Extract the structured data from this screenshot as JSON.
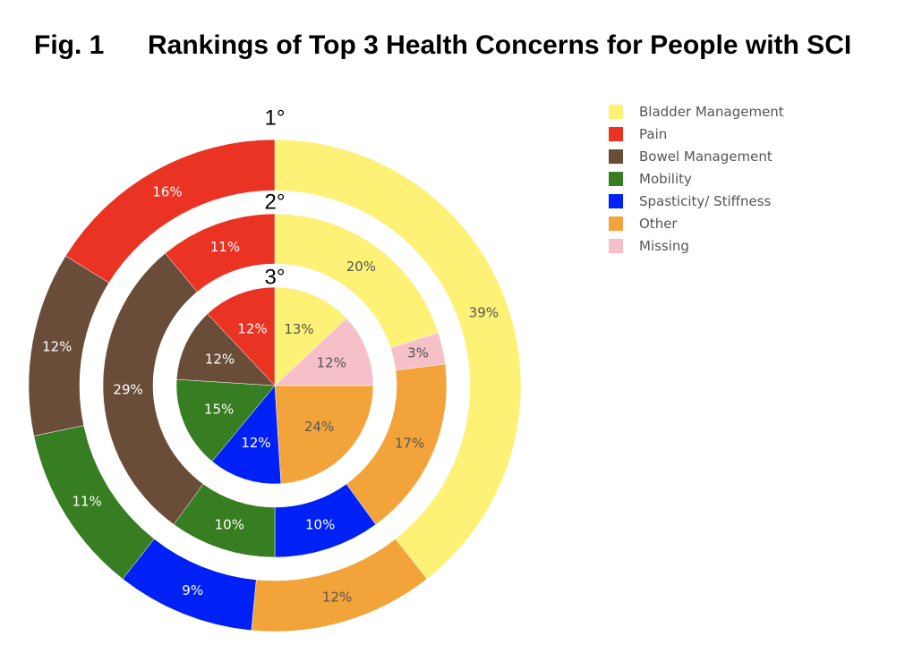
{
  "figure": {
    "label": "Fig. 1",
    "title": "Rankings of Top 3 Health Concerns for People with SCI"
  },
  "chart_data": {
    "type": "pie",
    "subtype": "nested-donut",
    "categories": [
      "Bladder Management",
      "Pain",
      "Bowel Management",
      "Mobility",
      "Spasticity/ Stiffness",
      "Other",
      "Missing"
    ],
    "colors": {
      "Bladder Management": "#fdf176",
      "Pain": "#ea3323",
      "Bowel Management": "#6a4d39",
      "Mobility": "#377d22",
      "Spasticity/ Stiffness": "#0021f5",
      "Other": "#f2a43a",
      "Missing": "#f6c0c9"
    },
    "rings": [
      {
        "label": "1°",
        "slices": [
          {
            "name": "Bladder Management",
            "value": 39,
            "label": "39%"
          },
          {
            "name": "Other",
            "value": 12,
            "label": "12%"
          },
          {
            "name": "Spasticity/ Stiffness",
            "value": 9,
            "label": "9%"
          },
          {
            "name": "Mobility",
            "value": 11,
            "label": "11%"
          },
          {
            "name": "Bowel Management",
            "value": 12,
            "label": "12%"
          },
          {
            "name": "Pain",
            "value": 16,
            "label": "16%"
          }
        ]
      },
      {
        "label": "2°",
        "slices": [
          {
            "name": "Bladder Management",
            "value": 20,
            "label": "20%"
          },
          {
            "name": "Missing",
            "value": 3,
            "label": "3%"
          },
          {
            "name": "Other",
            "value": 17,
            "label": "17%"
          },
          {
            "name": "Spasticity/ Stiffness",
            "value": 10,
            "label": "10%"
          },
          {
            "name": "Mobility",
            "value": 10,
            "label": "10%"
          },
          {
            "name": "Bowel Management",
            "value": 29,
            "label": "29%"
          },
          {
            "name": "Pain",
            "value": 11,
            "label": "11%"
          }
        ]
      },
      {
        "label": "3°",
        "slices": [
          {
            "name": "Bladder Management",
            "value": 13,
            "label": "13%"
          },
          {
            "name": "Missing",
            "value": 12,
            "label": "12%"
          },
          {
            "name": "Other",
            "value": 24,
            "label": "24%"
          },
          {
            "name": "Spasticity/ Stiffness",
            "value": 12,
            "label": "12%"
          },
          {
            "name": "Mobility",
            "value": 15,
            "label": "15%"
          },
          {
            "name": "Bowel Management",
            "value": 12,
            "label": "12%"
          },
          {
            "name": "Pain",
            "value": 12,
            "label": "12%"
          }
        ]
      }
    ],
    "direction": "clockwise",
    "start": "top",
    "legend_position": "right"
  },
  "legend": {
    "items": [
      {
        "label": "Bladder Management",
        "color": "#fdf176"
      },
      {
        "label": "Pain",
        "color": "#ea3323"
      },
      {
        "label": "Bowel Management",
        "color": "#6a4d39"
      },
      {
        "label": "Mobility",
        "color": "#377d22"
      },
      {
        "label": "Spasticity/ Stiffness",
        "color": "#0021f5"
      },
      {
        "label": "Other",
        "color": "#f2a43a"
      },
      {
        "label": "Missing",
        "color": "#f6c0c9"
      }
    ]
  }
}
